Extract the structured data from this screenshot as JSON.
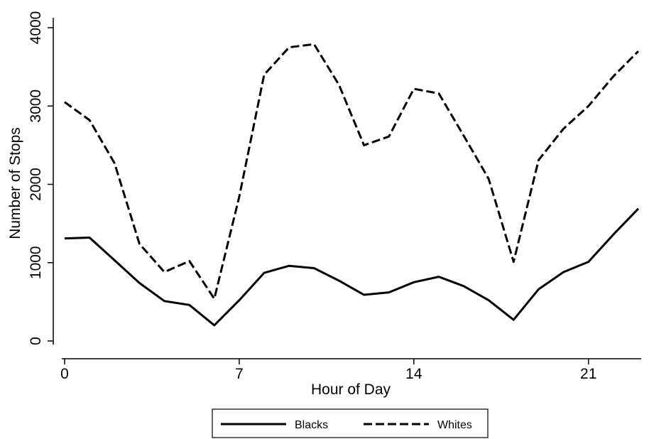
{
  "chart_data": {
    "type": "line",
    "title": "",
    "xlabel": "Hour of Day",
    "ylabel": "Number of Stops",
    "x": [
      0,
      1,
      2,
      3,
      4,
      5,
      6,
      7,
      8,
      9,
      10,
      11,
      12,
      13,
      14,
      15,
      16,
      17,
      18,
      19,
      20,
      21,
      22,
      23
    ],
    "xlim": [
      0,
      23
    ],
    "ylim": [
      0,
      4000
    ],
    "xticks": [
      0,
      7,
      14,
      21
    ],
    "yticks": [
      0,
      1000,
      2000,
      3000,
      4000
    ],
    "grid": false,
    "legend_position": "bottom",
    "series": [
      {
        "name": "Blacks",
        "style": "solid",
        "color": "#000000",
        "values": [
          1310,
          1320,
          1030,
          740,
          510,
          460,
          200,
          520,
          870,
          960,
          930,
          770,
          590,
          620,
          750,
          820,
          700,
          520,
          270,
          660,
          880,
          1010,
          1360,
          1690
        ]
      },
      {
        "name": "Whites",
        "style": "dashed",
        "color": "#000000",
        "values": [
          3050,
          2820,
          2270,
          1240,
          880,
          1020,
          540,
          1840,
          3400,
          3750,
          3790,
          3270,
          2500,
          2610,
          3220,
          3160,
          2620,
          2070,
          1010,
          2310,
          2710,
          3000,
          3380,
          3700
        ]
      }
    ]
  }
}
